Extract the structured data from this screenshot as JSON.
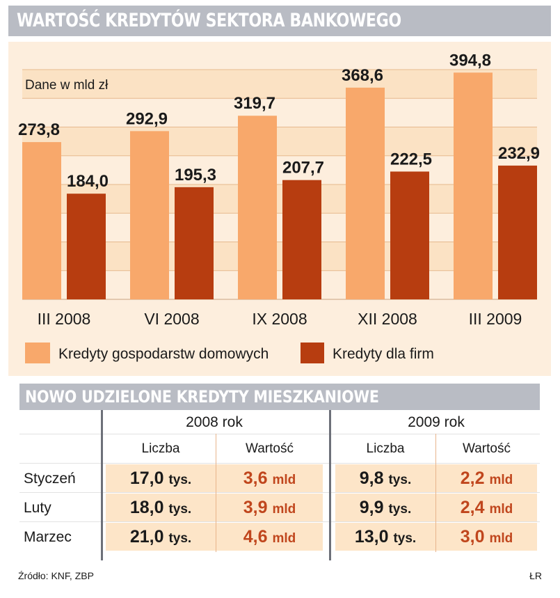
{
  "title": "WARTOŚĆ KREDYTÓW SEKTORA BANKOWEGO",
  "colors": {
    "households": "#f8a86b",
    "firms": "#b73d10",
    "accent_text": "#c0461d",
    "bar_grey": "#b9bcc4",
    "panel": "#fdeedd"
  },
  "chart_data": {
    "type": "bar",
    "title": "WARTOŚĆ KREDYTÓW SEKTORA BANKOWEGO",
    "unit_note": "Dane w mld zł",
    "categories": [
      "III 2008",
      "VI 2008",
      "IX 2008",
      "XII 2008",
      "III 2009"
    ],
    "series": [
      {
        "name": "Kredyty gospodarstw domowych",
        "values": [
          273.8,
          292.9,
          319.7,
          368.6,
          394.8
        ],
        "labels": [
          "273,8",
          "292,9",
          "319,7",
          "368,6",
          "394,8"
        ]
      },
      {
        "name": "Kredyty dla firm",
        "values": [
          184.0,
          195.3,
          207.7,
          222.5,
          232.9
        ],
        "labels": [
          "184,0",
          "195,3",
          "207,7",
          "222,5",
          "232,9"
        ]
      }
    ],
    "ylim": [
      0,
      400
    ],
    "grid": true,
    "legend": "bottom"
  },
  "table": {
    "title": "NOWO UDZIELONE KREDYTY MIESZKANIOWE",
    "years": [
      "2008 rok",
      "2009 rok"
    ],
    "subheaders": [
      "Liczba",
      "Wartość"
    ],
    "rows": [
      {
        "month": "Styczeń",
        "y2008": {
          "liczba": "17,0",
          "liczba_unit": "tys.",
          "wartosc": "3,6",
          "wartosc_unit": "mld"
        },
        "y2009": {
          "liczba": "9,8",
          "liczba_unit": "tys.",
          "wartosc": "2,2",
          "wartosc_unit": "mld"
        }
      },
      {
        "month": "Luty",
        "y2008": {
          "liczba": "18,0",
          "liczba_unit": "tys.",
          "wartosc": "3,9",
          "wartosc_unit": "mld"
        },
        "y2009": {
          "liczba": "9,9",
          "liczba_unit": "tys.",
          "wartosc": "2,4",
          "wartosc_unit": "mld"
        }
      },
      {
        "month": "Marzec",
        "y2008": {
          "liczba": "21,0",
          "liczba_unit": "tys.",
          "wartosc": "4,6",
          "wartosc_unit": "mld"
        },
        "y2009": {
          "liczba": "13,0",
          "liczba_unit": "tys.",
          "wartosc": "3,0",
          "wartosc_unit": "mld"
        }
      }
    ]
  },
  "footer": {
    "source": "Źródło: KNF, ZBP",
    "author": "ŁR"
  }
}
